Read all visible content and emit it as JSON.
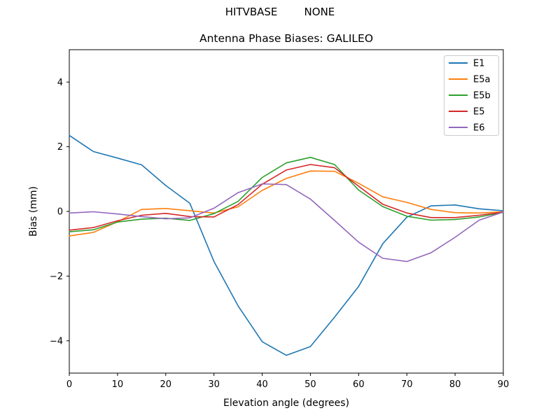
{
  "header": {
    "suptitle": "HITVBASE        NONE"
  },
  "chart_data": {
    "type": "line",
    "title": "Antenna Phase Biases: GALILEO",
    "xlabel": "Elevation angle (degrees)",
    "ylabel": "Bias (mm)",
    "xlim": [
      0,
      90
    ],
    "ylim": [
      -5,
      5
    ],
    "grid": false,
    "x_ticks": {
      "values": [
        0,
        10,
        20,
        30,
        40,
        50,
        60,
        70,
        80,
        90
      ],
      "labels": [
        "0",
        "10",
        "20",
        "30",
        "40",
        "50",
        "60",
        "70",
        "80",
        "90"
      ]
    },
    "y_ticks": {
      "values": [
        4,
        2,
        0,
        -2,
        -4
      ],
      "labels": [
        "4",
        "2",
        "0",
        "−2",
        "−4"
      ]
    },
    "legend": {
      "position": "upper right"
    },
    "x": [
      0,
      5,
      10,
      15,
      20,
      25,
      30,
      35,
      40,
      45,
      50,
      55,
      60,
      65,
      70,
      75,
      80,
      85,
      90
    ],
    "series": [
      {
        "name": "E1",
        "color": "#1f77b4",
        "values": [
          2.35,
          1.85,
          1.65,
          1.44,
          0.8,
          0.25,
          -1.55,
          -2.92,
          -4.03,
          -4.45,
          -4.18,
          -3.27,
          -2.32,
          -1.0,
          -0.18,
          0.17,
          0.2,
          0.08,
          0.02
        ]
      },
      {
        "name": "E5a",
        "color": "#ff7f0e",
        "values": [
          -0.76,
          -0.65,
          -0.32,
          0.06,
          0.09,
          0.02,
          -0.05,
          0.14,
          0.65,
          1.02,
          1.25,
          1.24,
          0.87,
          0.45,
          0.28,
          0.06,
          -0.04,
          -0.05,
          -0.01
        ]
      },
      {
        "name": "E5b",
        "color": "#2ca02c",
        "values": [
          -0.63,
          -0.57,
          -0.33,
          -0.24,
          -0.21,
          -0.28,
          -0.07,
          0.31,
          1.05,
          1.5,
          1.67,
          1.45,
          0.66,
          0.15,
          -0.15,
          -0.27,
          -0.25,
          -0.17,
          -0.03
        ]
      },
      {
        "name": "E5",
        "color": "#d62728",
        "values": [
          -0.58,
          -0.5,
          -0.29,
          -0.12,
          -0.06,
          -0.16,
          -0.17,
          0.21,
          0.84,
          1.28,
          1.45,
          1.35,
          0.78,
          0.22,
          -0.05,
          -0.19,
          -0.19,
          -0.12,
          -0.02
        ]
      },
      {
        "name": "E6",
        "color": "#9467bd",
        "values": [
          -0.05,
          -0.01,
          -0.08,
          -0.16,
          -0.23,
          -0.2,
          0.1,
          0.58,
          0.85,
          0.83,
          0.38,
          -0.28,
          -0.95,
          -1.45,
          -1.55,
          -1.28,
          -0.8,
          -0.27,
          -0.02
        ]
      }
    ],
    "frame_color": "#000000",
    "legend_border_color": "#cccccc"
  }
}
